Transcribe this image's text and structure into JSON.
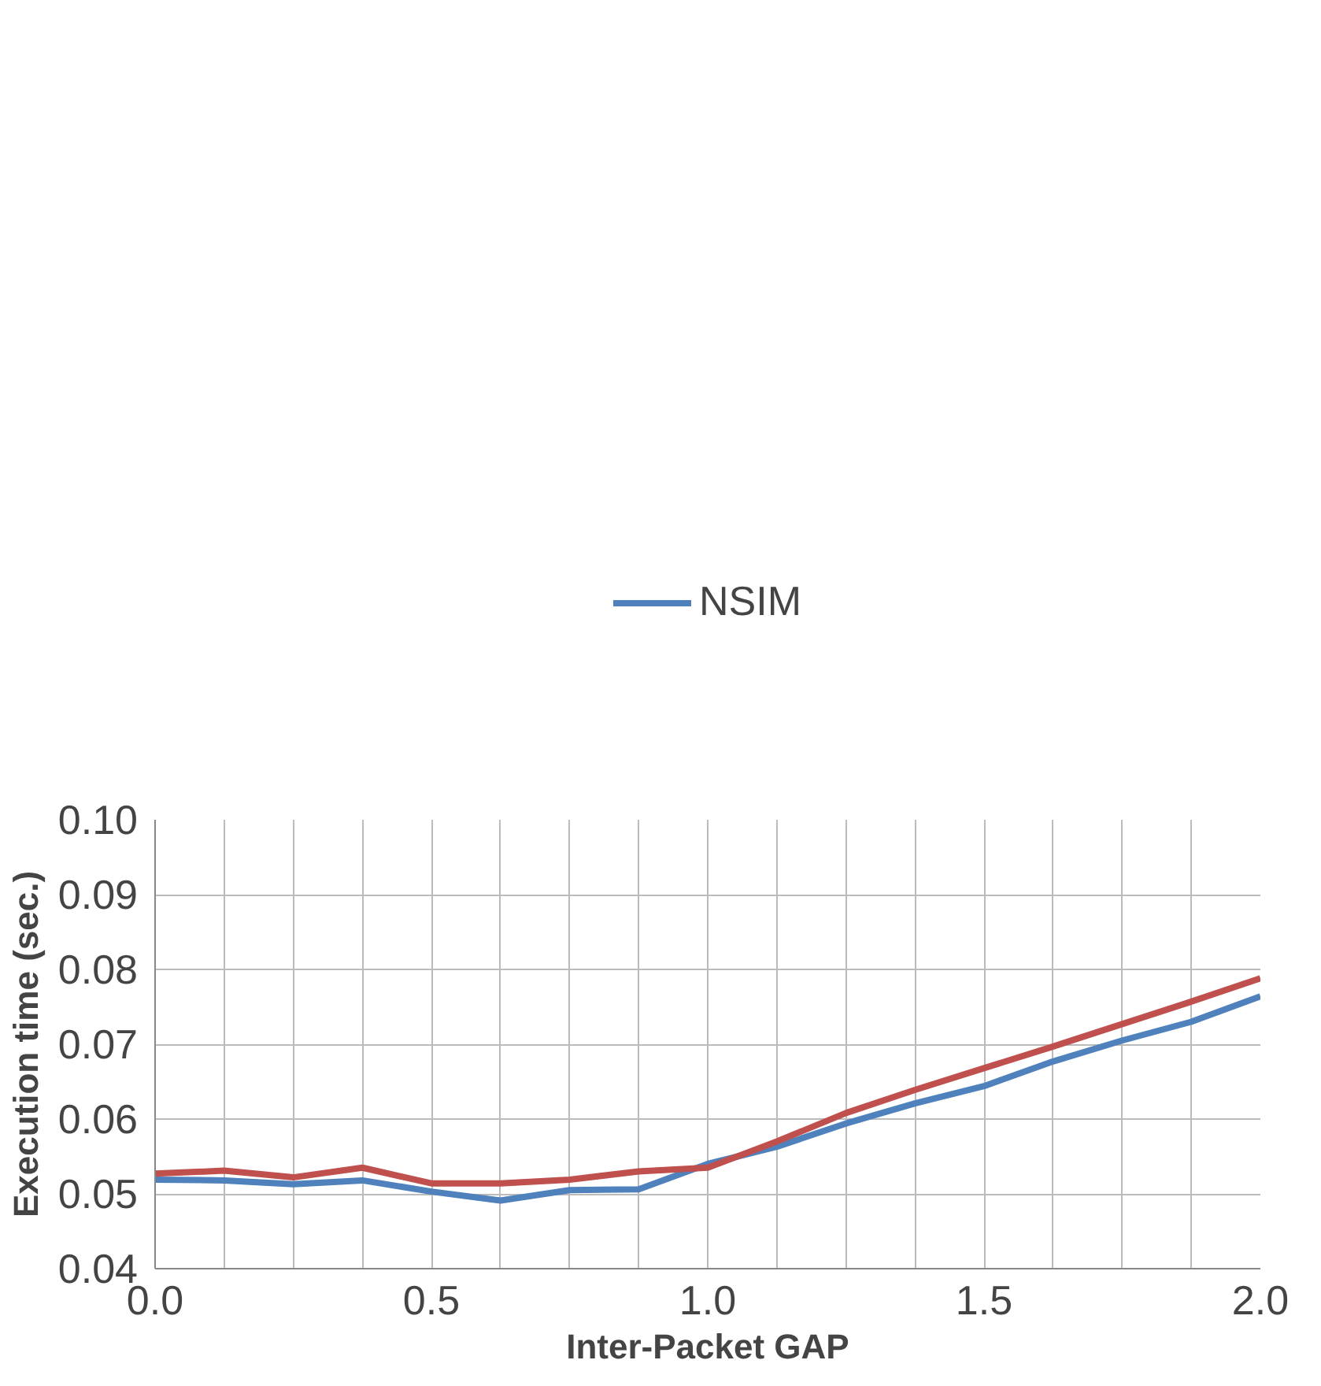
{
  "chart_data": {
    "type": "line",
    "xlabel": "Inter-Packet GAP",
    "ylabel": "Execution time (sec.)",
    "x": [
      0,
      0.125,
      0.25,
      0.375,
      0.5,
      0.625,
      0.75,
      0.875,
      1.0,
      1.125,
      1.25,
      1.375,
      1.5,
      1.625,
      1.75,
      1.875,
      2.0
    ],
    "series": [
      {
        "name": "NSIM",
        "color": "#4f81bd",
        "values": [
          0.0519,
          0.0518,
          0.0513,
          0.0518,
          0.0503,
          0.0491,
          0.0505,
          0.0506,
          0.054,
          0.0563,
          0.0594,
          0.0621,
          0.0644,
          0.0677,
          0.0705,
          0.073,
          0.0764
        ]
      },
      {
        "color": "#c0504d",
        "values": [
          0.0527,
          0.0531,
          0.0522,
          0.0535,
          0.0514,
          0.0514,
          0.0519,
          0.053,
          0.0535,
          0.057,
          0.0608,
          0.0639,
          0.0668,
          0.0697,
          0.0727,
          0.0757,
          0.0788
        ]
      }
    ],
    "xlim": [
      0,
      2
    ],
    "ylim": [
      0.04,
      0.1
    ],
    "xticks": [
      {
        "value": 0,
        "label": "0.0"
      },
      {
        "value": 0.125,
        "label": null
      },
      {
        "value": 0.25,
        "label": null
      },
      {
        "value": 0.375,
        "label": null
      },
      {
        "value": 0.5,
        "label": "0.5"
      },
      {
        "value": 0.625,
        "label": null
      },
      {
        "value": 0.75,
        "label": null
      },
      {
        "value": 0.875,
        "label": null
      },
      {
        "value": 1.0,
        "label": "1.0"
      },
      {
        "value": 1.125,
        "label": null
      },
      {
        "value": 1.25,
        "label": null
      },
      {
        "value": 1.375,
        "label": null
      },
      {
        "value": 1.5,
        "label": "1.5"
      },
      {
        "value": 1.625,
        "label": null
      },
      {
        "value": 1.75,
        "label": null
      },
      {
        "value": 1.875,
        "label": null
      },
      {
        "value": 2.0,
        "label": "2.0"
      }
    ],
    "yticks": [
      0.04,
      0.05,
      0.06,
      0.07,
      0.08,
      0.09,
      {
        "value": 0.1,
        "label": "0.10"
      }
    ],
    "grid": true,
    "legend": "top",
    "marker": "none",
    "line_style": "solid"
  }
}
